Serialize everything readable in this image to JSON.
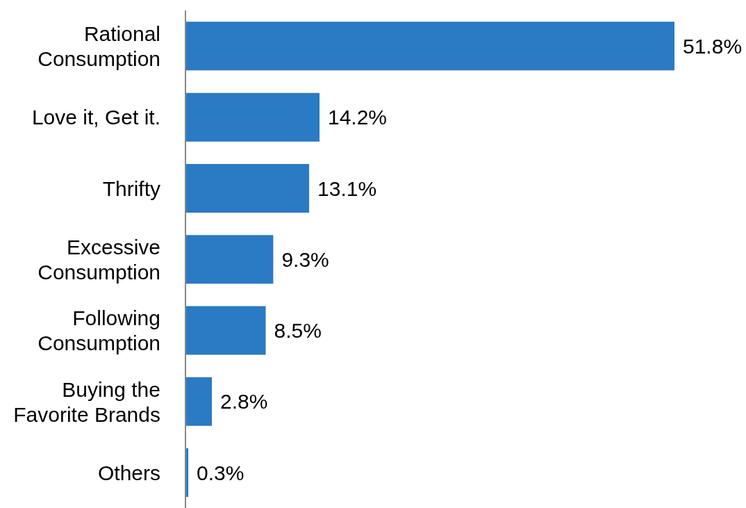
{
  "chart_data": {
    "type": "bar",
    "orientation": "horizontal",
    "categories": [
      "Rational Consumption",
      "Love it, Get it.",
      "Thrifty",
      "Excessive Consumption",
      "Following Consumption",
      "Buying the Favorite Brands",
      "Others"
    ],
    "values": [
      51.8,
      14.2,
      13.1,
      9.3,
      8.5,
      2.8,
      0.3
    ],
    "value_labels": [
      "51.8%",
      "14.2%",
      "13.1%",
      "9.3%",
      "8.5%",
      "2.8%",
      "0.3%"
    ],
    "color": "#2a7ac4"
  }
}
